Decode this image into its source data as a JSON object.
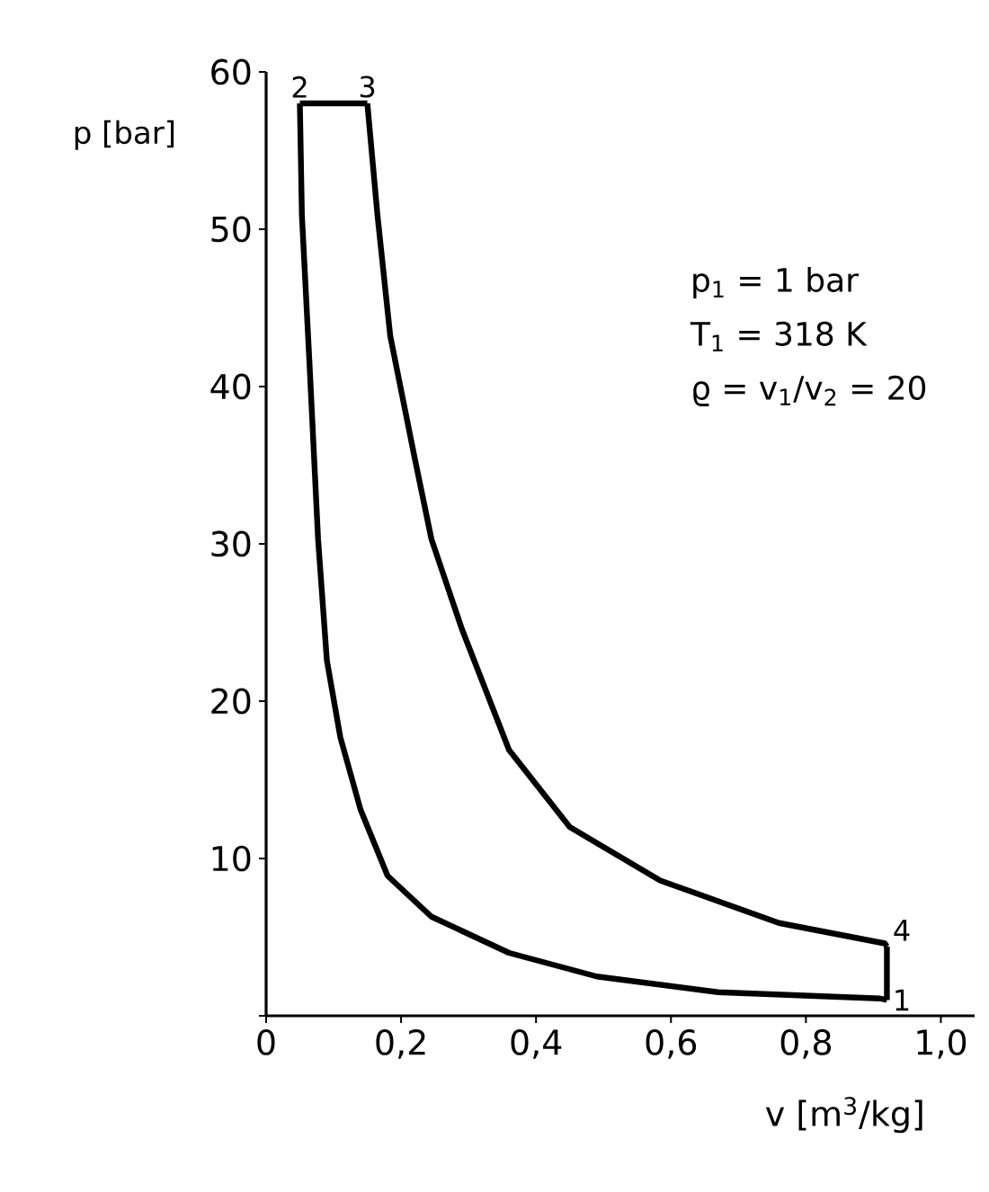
{
  "chart_data": {
    "type": "line",
    "xlabel": "v [m$^{3}$/kg]",
    "ylabel": "p [bar]",
    "xlim": [
      0,
      1.05
    ],
    "ylim": [
      0,
      60
    ],
    "xticks": [
      0,
      {
        "value": 0.2,
        "label": "0,2"
      },
      {
        "value": 0.4,
        "label": "0,4"
      },
      {
        "value": 0.6,
        "label": "0,6"
      },
      {
        "value": 0.8,
        "label": "0,8"
      },
      {
        "value": 1.0,
        "label": "1,0"
      }
    ],
    "yticks": [
      {
        "value": 0,
        "label": null
      },
      10,
      20,
      30,
      40,
      50,
      60
    ],
    "series": [
      {
        "color": "#000000",
        "x": [
          0.05,
          0.053,
          0.064,
          0.077,
          0.09,
          0.11,
          0.14,
          0.18,
          0.245,
          0.36,
          0.49,
          0.67,
          0.91,
          0.92
        ],
        "values": [
          58,
          50.9,
          41.7,
          30.3,
          22.6,
          17.7,
          13.1,
          8.9,
          6.3,
          4,
          2.5,
          1.5,
          1.1,
          1
        ]
      },
      {
        "color": "#000000",
        "x": [
          0.05,
          0.15
        ],
        "values": [
          58,
          58
        ]
      },
      {
        "color": "#000000",
        "x": [
          0.15,
          0.165,
          0.184,
          0.219,
          0.245,
          0.29,
          0.36,
          0.45,
          0.584,
          0.76,
          0.917,
          0.92
        ],
        "values": [
          58,
          50.9,
          43.2,
          35.7,
          30.3,
          24.6,
          16.9,
          12,
          8.6,
          5.9,
          4.6,
          4.4
        ]
      },
      {
        "color": "#000000",
        "x": [
          0.92,
          0.92
        ],
        "values": [
          1,
          4.4
        ]
      }
    ],
    "annotations": [
      {
        "text": "1",
        "x": 0.92,
        "y": 1
      },
      {
        "text": "2",
        "x": 0.05,
        "y": 58
      },
      {
        "text": "3",
        "x": 0.15,
        "y": 58
      },
      {
        "text": "4",
        "x": 0.92,
        "y": 4.4
      },
      "p$_{1}$ = 1 bar",
      "T$_{1}$ = 318 K",
      "ϱ = v$_{1}$/v$_{2}$ = 20"
    ]
  }
}
